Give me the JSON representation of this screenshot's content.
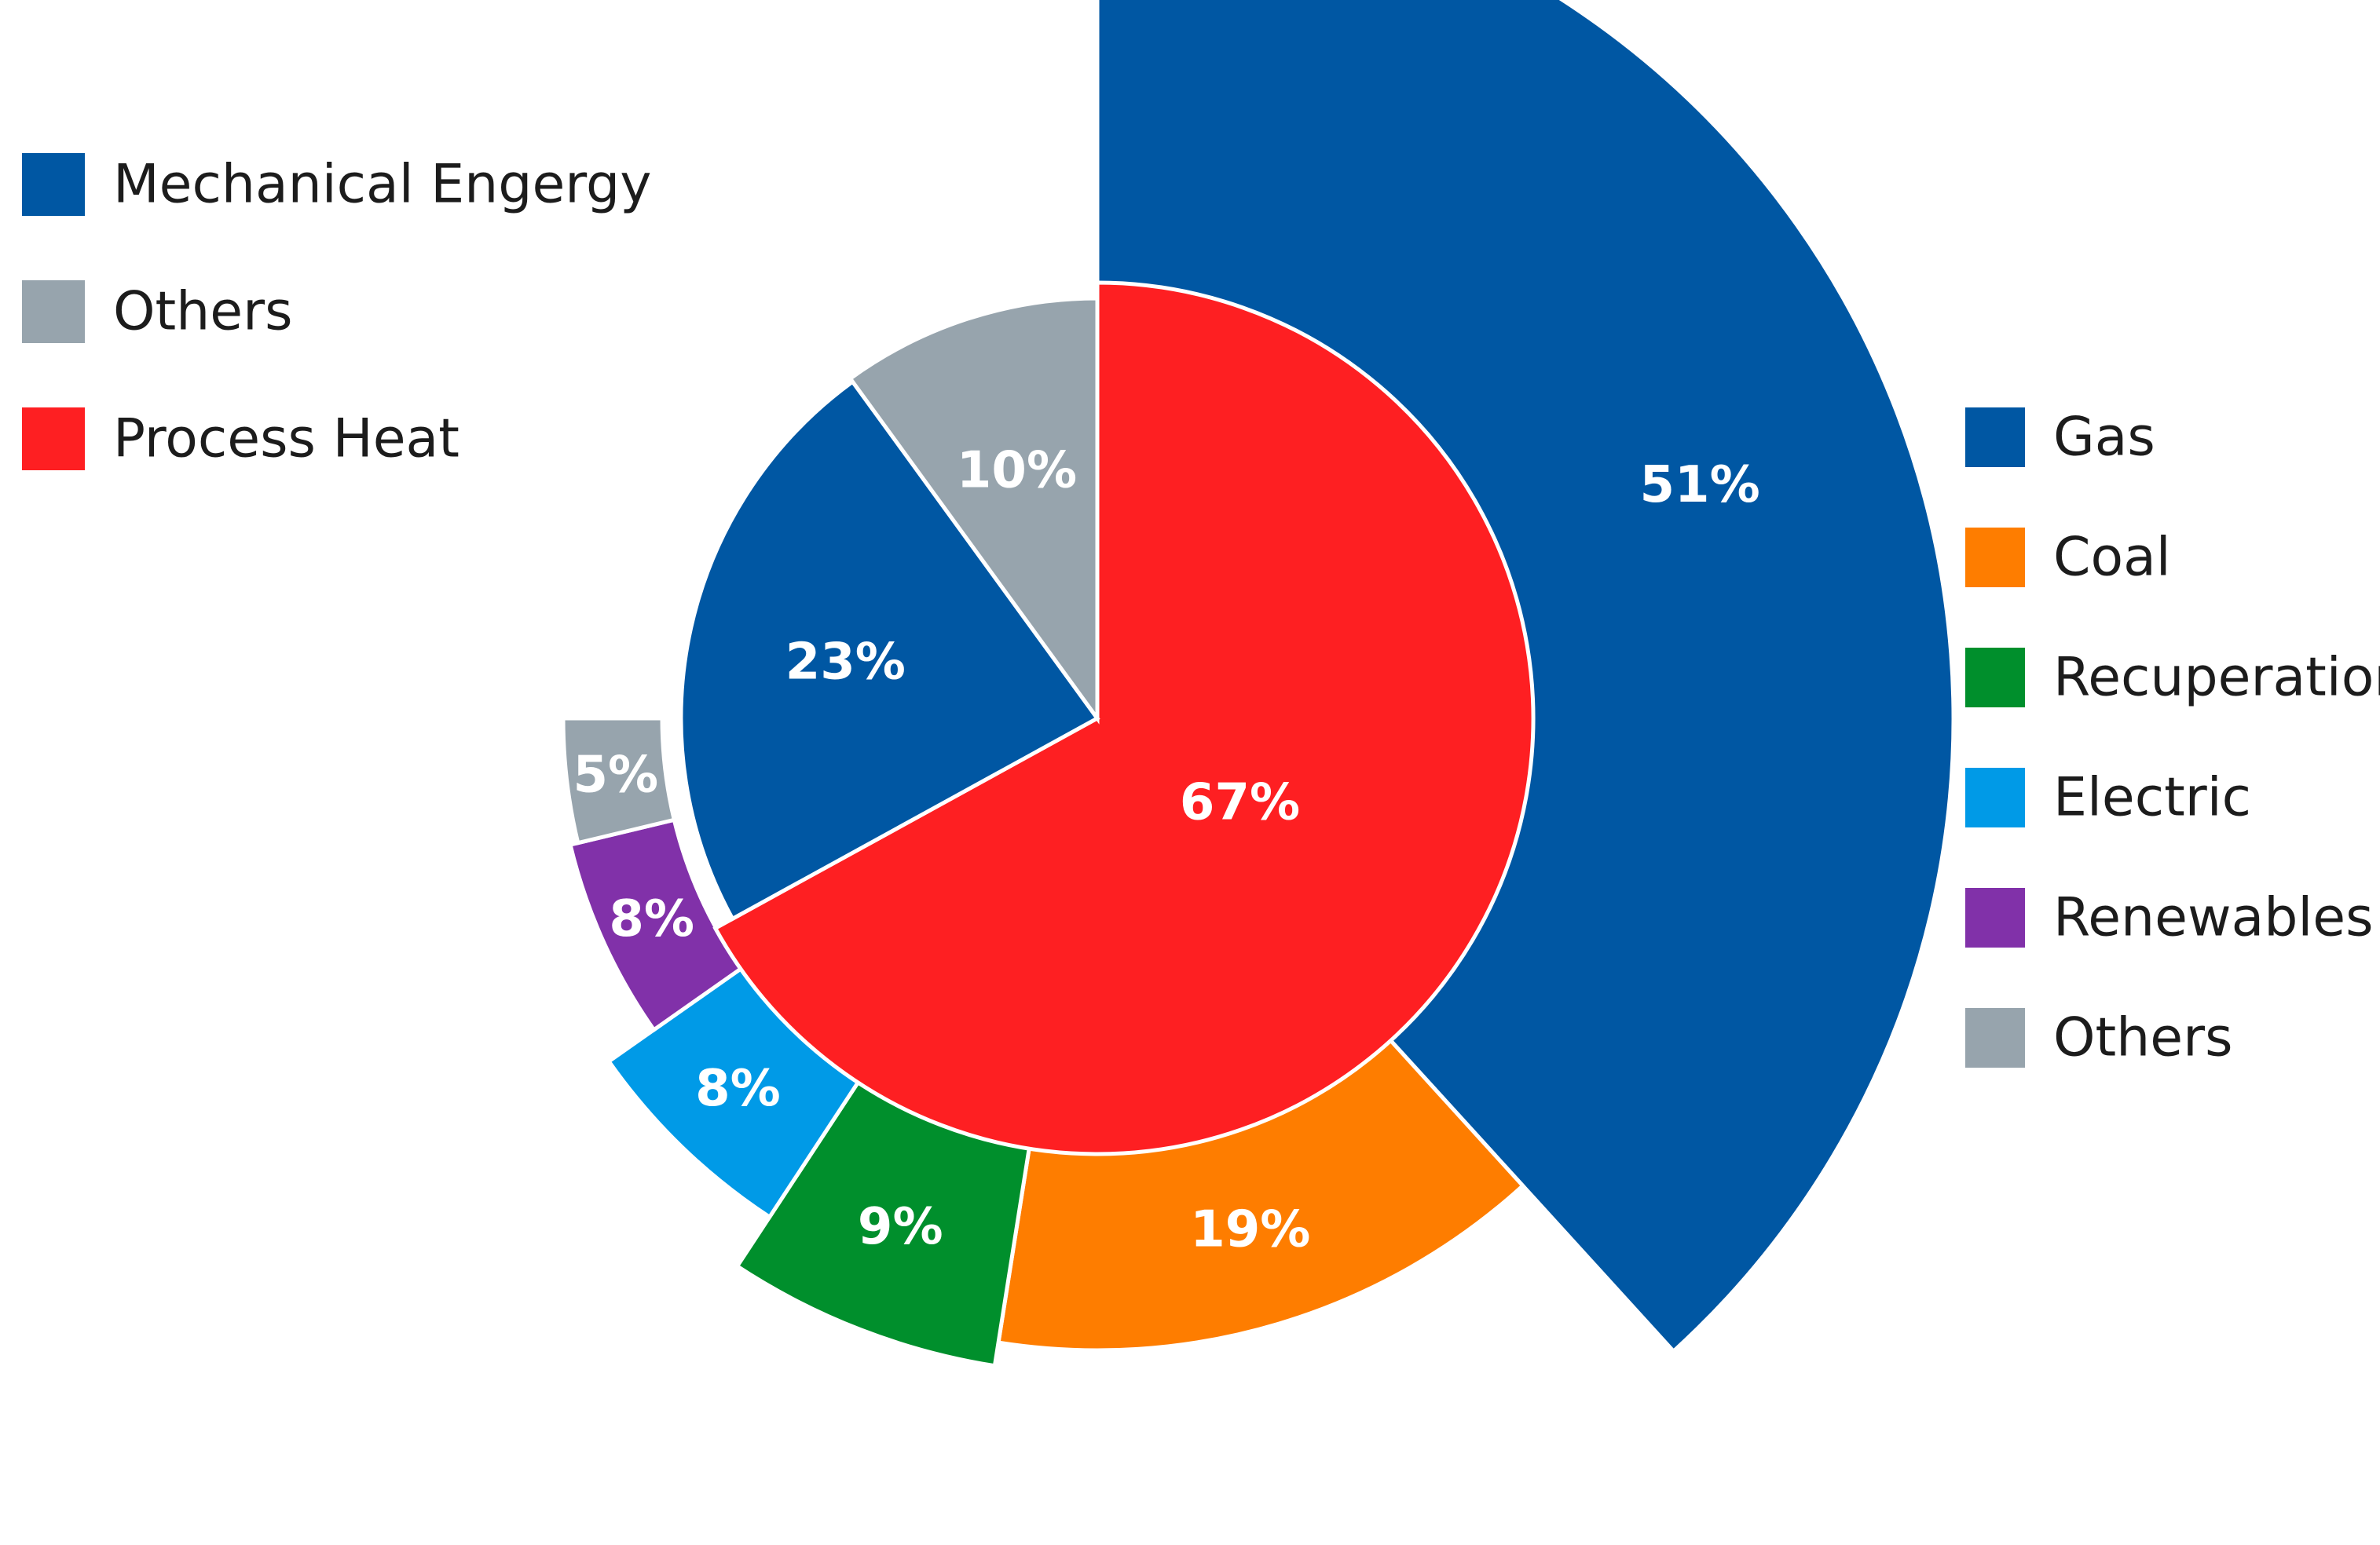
{
  "chart_data": {
    "type": "pie",
    "inner": {
      "slices": [
        {
          "name": "Process Heat",
          "value": 67,
          "label": "67%",
          "color": "#fe1f22"
        },
        {
          "name": "Mechanical Engergy",
          "value": 23,
          "label": "23%",
          "color": "#0057a3"
        },
        {
          "name": "Others",
          "value": 10,
          "label": "10%",
          "color": "#97a4ad"
        }
      ]
    },
    "outer": {
      "slices": [
        {
          "name": "Gas",
          "value": 51,
          "label": "51%",
          "color": "#0057a3"
        },
        {
          "name": "Coal",
          "value": 19,
          "label": "19%",
          "color": "#fe7d00"
        },
        {
          "name": "Recuperation",
          "value": 9,
          "label": "9%",
          "color": "#008f2c"
        },
        {
          "name": "Electric",
          "value": 8,
          "label": "8%",
          "color": "#009ae7"
        },
        {
          "name": "Renewables",
          "value": 8,
          "label": "8%",
          "color": "#8131a9"
        },
        {
          "name": "Others",
          "value": 5,
          "label": "5%",
          "color": "#97a4ad"
        }
      ]
    },
    "legends": {
      "inner": {
        "placement": "top-left",
        "entries": [
          {
            "label": "Mechanical Engergy",
            "color": "#0057a3"
          },
          {
            "label": "Others",
            "color": "#97a4ad"
          },
          {
            "label": "Process Heat",
            "color": "#fe1f22"
          }
        ]
      },
      "outer": {
        "placement": "right",
        "entries": [
          {
            "label": "Gas",
            "color": "#0057a3"
          },
          {
            "label": "Coal",
            "color": "#fe7d00"
          },
          {
            "label": "Recuperation",
            "color": "#008f2c"
          },
          {
            "label": "Electric",
            "color": "#009ae7"
          },
          {
            "label": "Renewables",
            "color": "#8131a9"
          },
          {
            "label": "Others",
            "color": "#97a4ad"
          }
        ]
      }
    }
  }
}
